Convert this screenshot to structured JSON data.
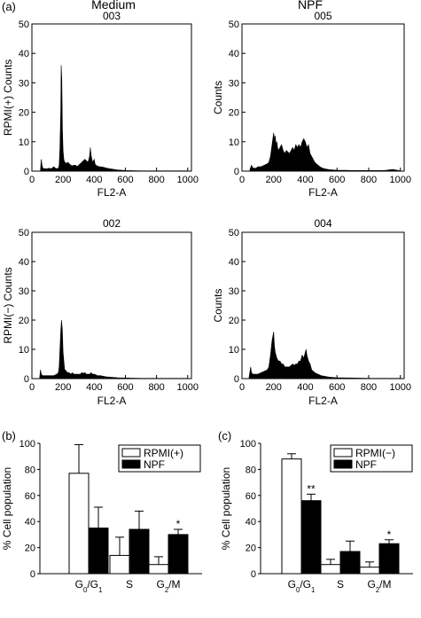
{
  "figure": {
    "panel_labels": {
      "a": "(a)",
      "b": "(b)",
      "c": "(c)"
    },
    "column_titles": [
      "Medium",
      "NPF"
    ]
  },
  "chart_data": [
    {
      "type": "area",
      "title": "003",
      "xlabel": "FL2-A",
      "ylabel": "RPMI(+) Counts",
      "xlim": [
        0,
        1024
      ],
      "ylim": [
        0,
        50
      ],
      "xticks": [
        0,
        200,
        400,
        600,
        800,
        1000
      ],
      "yticks": [
        0,
        10,
        20,
        30,
        40,
        50
      ],
      "x": [
        55,
        60,
        65,
        70,
        80,
        90,
        100,
        110,
        120,
        130,
        140,
        150,
        160,
        170,
        175,
        180,
        185,
        188,
        192,
        196,
        200,
        205,
        210,
        215,
        220,
        230,
        240,
        250,
        260,
        270,
        280,
        290,
        300,
        310,
        320,
        330,
        340,
        350,
        360,
        370,
        375,
        380,
        385,
        390,
        395,
        400,
        405,
        410,
        420,
        430,
        440,
        460,
        480,
        500,
        550,
        600,
        700,
        800,
        900,
        1000
      ],
      "y": [
        0.5,
        4,
        2,
        1,
        0.8,
        0.8,
        0.8,
        1,
        0.8,
        1,
        1.5,
        1,
        0.8,
        1,
        2,
        8,
        20,
        36,
        31,
        14,
        7,
        4,
        3,
        3,
        2.5,
        3,
        2.5,
        2,
        1.8,
        2,
        2,
        1.5,
        2,
        2.5,
        3,
        3.5,
        4,
        3.5,
        3,
        5,
        8,
        5.5,
        4,
        3,
        3.5,
        4,
        2.5,
        2,
        1.8,
        1.5,
        1.5,
        1.3,
        1,
        0.8,
        0.4,
        0.2,
        0.1,
        0.1,
        0.1,
        0.1
      ]
    },
    {
      "type": "area",
      "title": "005",
      "xlabel": "FL2-A",
      "ylabel": "Counts",
      "xlim": [
        0,
        1024
      ],
      "ylim": [
        0,
        50
      ],
      "xticks": [
        0,
        200,
        400,
        600,
        800,
        1000
      ],
      "yticks": [
        0,
        10,
        20,
        30,
        40,
        50
      ],
      "x": [
        50,
        60,
        70,
        80,
        90,
        100,
        120,
        140,
        160,
        170,
        180,
        190,
        200,
        205,
        210,
        215,
        220,
        225,
        230,
        240,
        250,
        260,
        270,
        280,
        290,
        300,
        310,
        320,
        330,
        340,
        350,
        360,
        370,
        380,
        390,
        400,
        405,
        410,
        420,
        430,
        440,
        450,
        460,
        470,
        480,
        500,
        520,
        550,
        600,
        650,
        700,
        800,
        900,
        950,
        1000
      ],
      "y": [
        0.5,
        2,
        1,
        1,
        1,
        1.5,
        1.5,
        2,
        2.5,
        3,
        5,
        9,
        13,
        11,
        12,
        9,
        10,
        8,
        7,
        8,
        9,
        7,
        6,
        7,
        6.5,
        6,
        7,
        8,
        7,
        9,
        8,
        9,
        8,
        10,
        11,
        10,
        9,
        8,
        9,
        6,
        5,
        4,
        3,
        2.5,
        2,
        1.2,
        0.8,
        0.5,
        0.3,
        0.3,
        0.2,
        0.2,
        0.2,
        0.6,
        0.1
      ]
    },
    {
      "type": "area",
      "title": "002",
      "xlabel": "FL2-A",
      "ylabel": "RPMI(−) Counts",
      "xlim": [
        0,
        1024
      ],
      "ylim": [
        0,
        50
      ],
      "xticks": [
        0,
        200,
        400,
        600,
        800,
        1000
      ],
      "yticks": [
        0,
        10,
        20,
        30,
        40,
        50
      ],
      "x": [
        50,
        55,
        60,
        70,
        80,
        90,
        100,
        120,
        140,
        160,
        170,
        175,
        180,
        185,
        190,
        195,
        200,
        205,
        210,
        215,
        220,
        230,
        240,
        250,
        260,
        270,
        280,
        290,
        300,
        310,
        320,
        330,
        340,
        350,
        360,
        370,
        380,
        390,
        400,
        410,
        420,
        440,
        460,
        480,
        500,
        550,
        600,
        700,
        800,
        900,
        1000
      ],
      "y": [
        0.5,
        3,
        1.5,
        1,
        1,
        1,
        1,
        1,
        1,
        1.5,
        2,
        4,
        10,
        16,
        20,
        17,
        9,
        6,
        3,
        3,
        2.5,
        2,
        2,
        1.5,
        2,
        1.5,
        1.5,
        1.5,
        1.5,
        1.5,
        2,
        1.8,
        2,
        1.5,
        1.5,
        1.5,
        2,
        1.5,
        1.5,
        1.3,
        1,
        1,
        0.8,
        0.6,
        0.5,
        0.3,
        0.2,
        0.1,
        0.1,
        0.1,
        0.1
      ]
    },
    {
      "type": "area",
      "title": "004",
      "xlabel": "FL2-A",
      "ylabel": "Counts",
      "xlim": [
        0,
        1024
      ],
      "ylim": [
        0,
        50
      ],
      "xticks": [
        0,
        200,
        400,
        600,
        800,
        1000
      ],
      "yticks": [
        0,
        10,
        20,
        30,
        40,
        50
      ],
      "x": [
        45,
        55,
        60,
        70,
        80,
        90,
        100,
        120,
        140,
        160,
        170,
        180,
        190,
        200,
        205,
        210,
        215,
        220,
        230,
        240,
        250,
        260,
        270,
        280,
        290,
        300,
        310,
        320,
        330,
        340,
        350,
        360,
        370,
        380,
        390,
        400,
        405,
        410,
        420,
        430,
        440,
        460,
        480,
        500,
        550,
        600,
        700,
        800,
        900,
        1000
      ],
      "y": [
        0.5,
        4,
        2,
        1.5,
        1.5,
        1.5,
        1.5,
        2,
        2.5,
        3,
        4,
        8,
        13,
        16,
        11,
        9,
        8,
        7,
        6,
        6,
        5,
        5,
        4,
        4,
        4,
        4,
        4.5,
        5,
        4.5,
        5,
        5,
        6,
        6,
        8,
        7,
        9,
        10,
        8,
        6,
        5,
        3,
        2,
        1.5,
        1,
        0.5,
        0.3,
        0.2,
        0.1,
        0.1,
        0.1
      ]
    },
    {
      "type": "bar",
      "title": "",
      "xlabel": "",
      "ylabel": "% Cell population",
      "ylim": [
        0,
        100
      ],
      "yticks": [
        0,
        20,
        40,
        60,
        80,
        100
      ],
      "categories": [
        "G0/G1",
        "S",
        "G2/M"
      ],
      "series": [
        {
          "name": "RPMI(+)",
          "fill": "#ffffff",
          "values": [
            77,
            14,
            7
          ],
          "errors": [
            22,
            14,
            6
          ]
        },
        {
          "name": "NPF",
          "fill": "#000000",
          "values": [
            35,
            34,
            30
          ],
          "errors": [
            16,
            14,
            4
          ]
        }
      ],
      "annotations": [
        {
          "category": "G2/M",
          "series": "NPF",
          "text": "*"
        }
      ],
      "legend": "top-right"
    },
    {
      "type": "bar",
      "title": "",
      "xlabel": "",
      "ylabel": "% Cell population",
      "ylim": [
        0,
        100
      ],
      "yticks": [
        0,
        20,
        40,
        60,
        80,
        100
      ],
      "categories": [
        "G0/G1",
        "S",
        "G2/M"
      ],
      "series": [
        {
          "name": "RPMI(−)",
          "fill": "#ffffff",
          "values": [
            88,
            7,
            5
          ],
          "errors": [
            4,
            4,
            4
          ]
        },
        {
          "name": "NPF",
          "fill": "#000000",
          "values": [
            56,
            17,
            23
          ],
          "errors": [
            5,
            8,
            3
          ]
        }
      ],
      "annotations": [
        {
          "category": "G0/G1",
          "series": "NPF",
          "text": "**"
        },
        {
          "category": "G2/M",
          "series": "NPF",
          "text": "*"
        }
      ],
      "legend": "top-right"
    }
  ]
}
